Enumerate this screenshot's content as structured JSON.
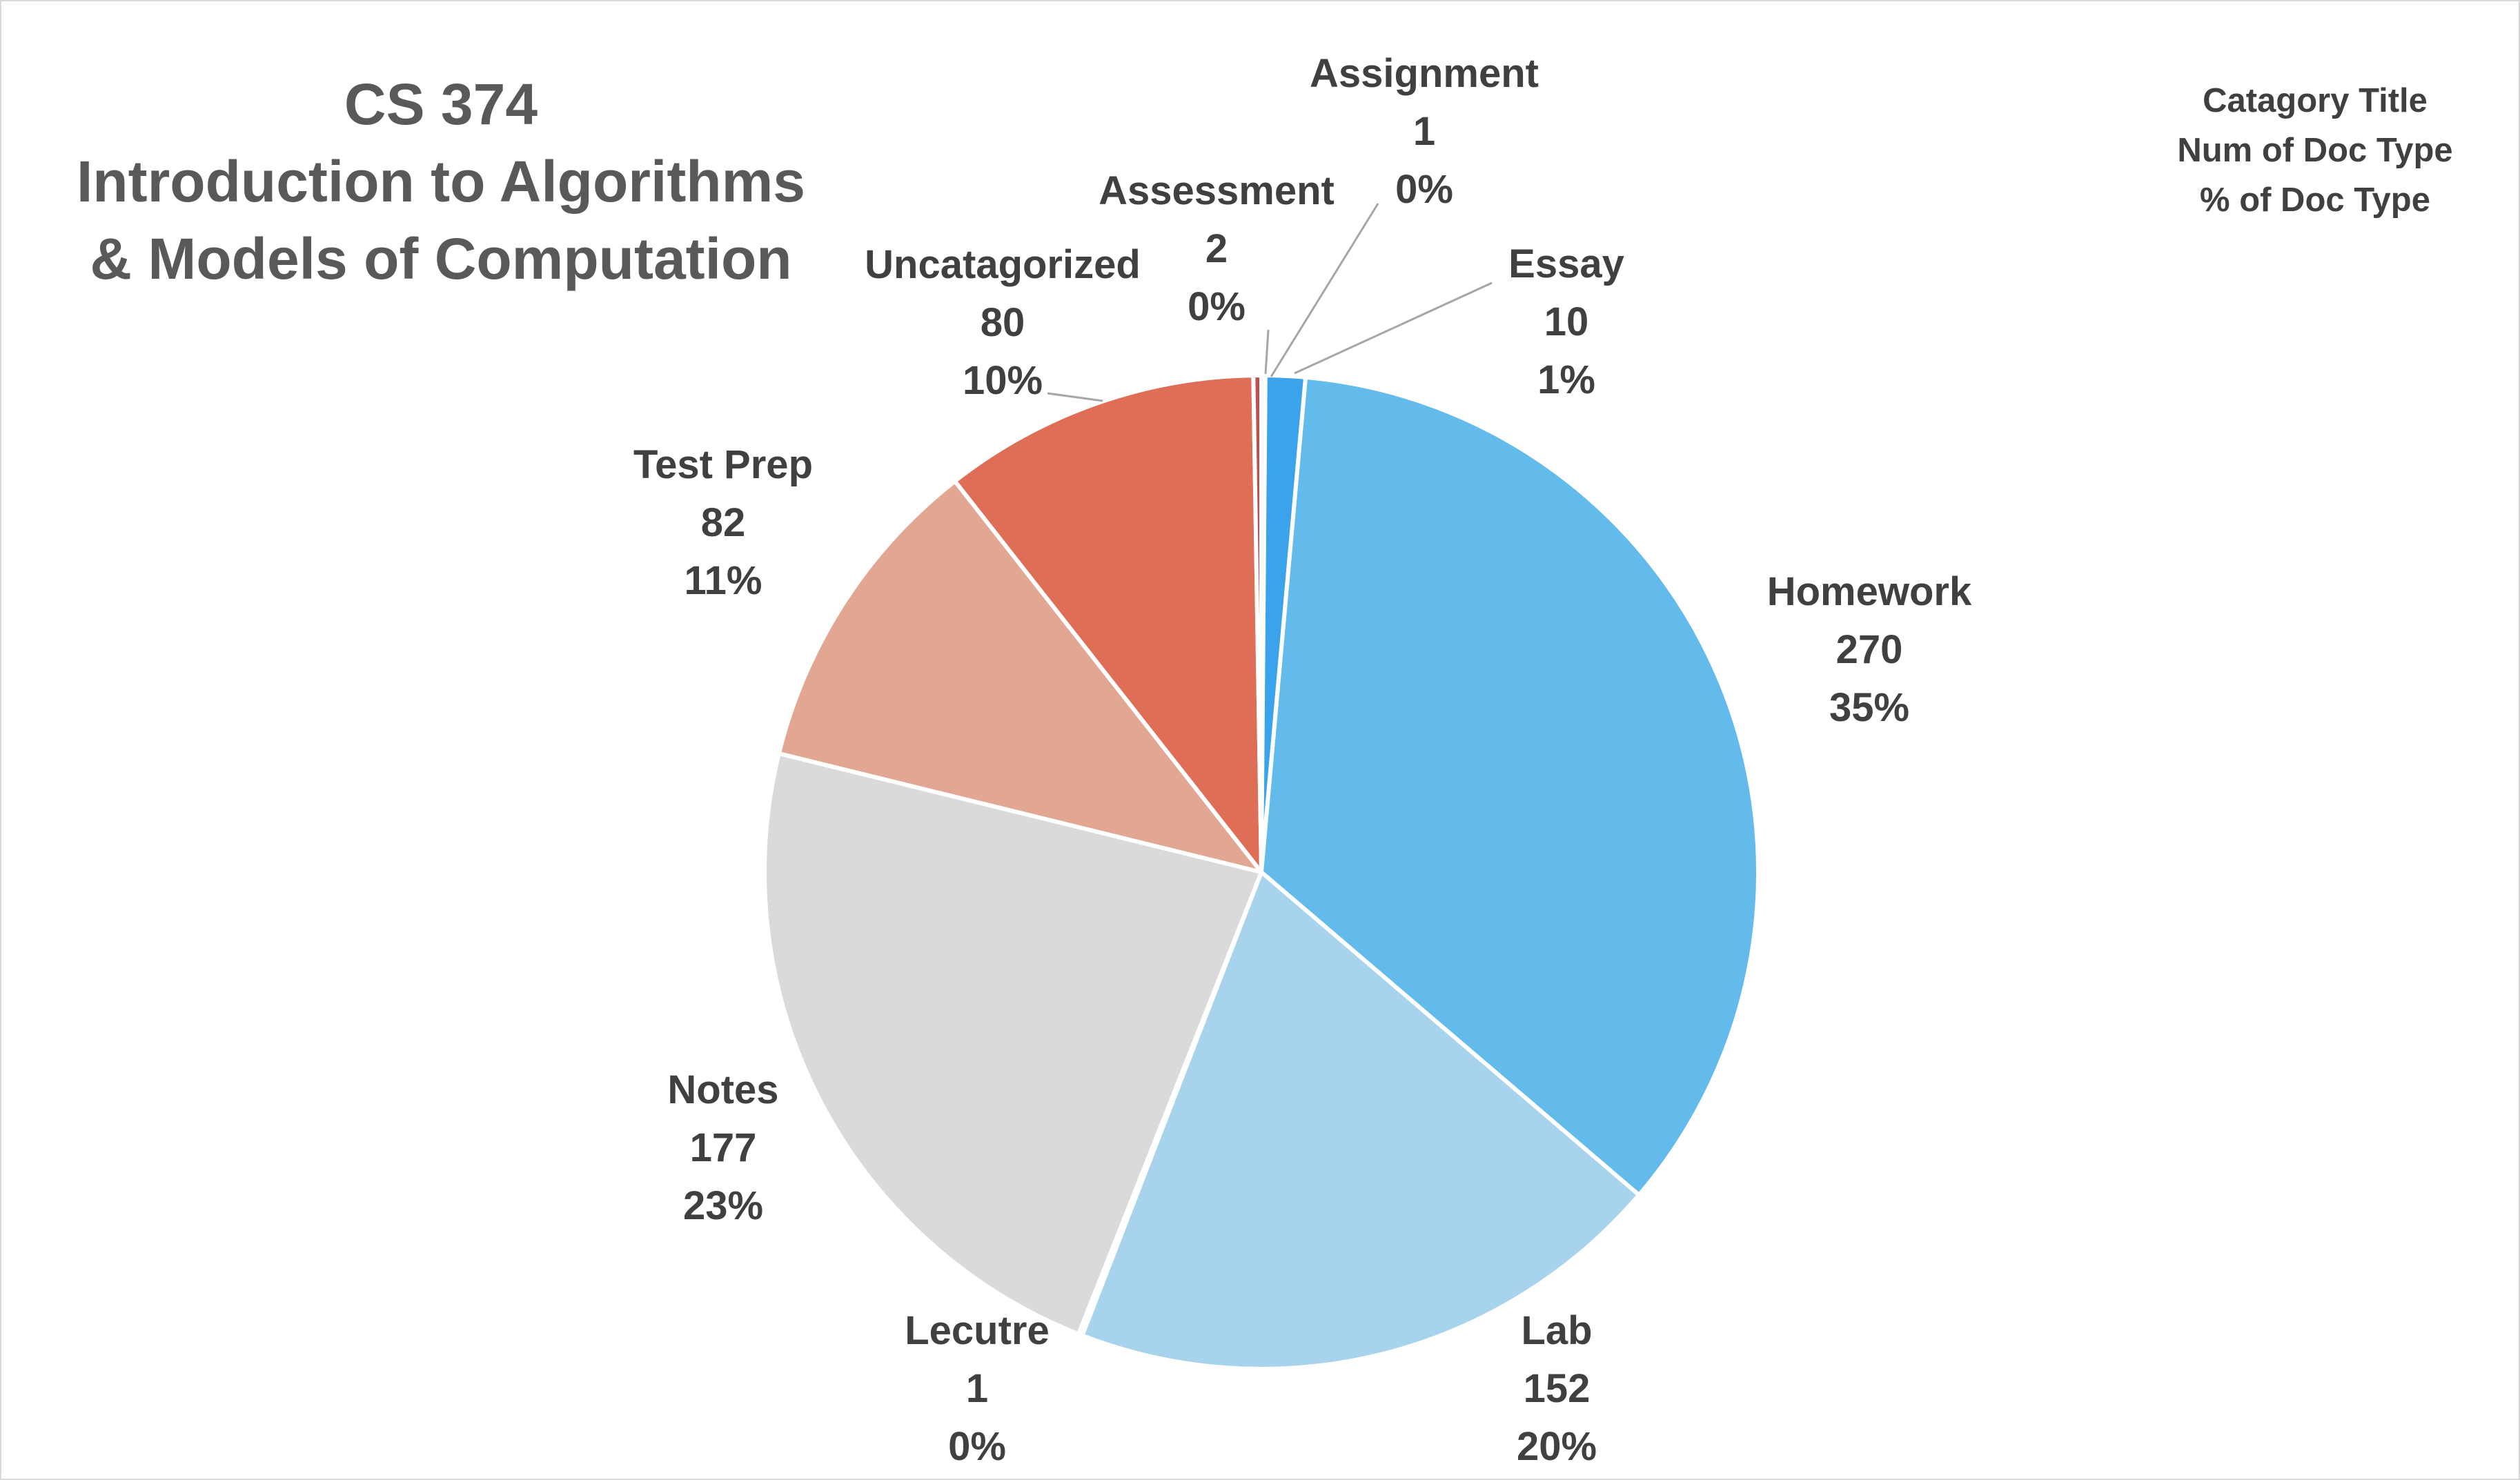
{
  "chart_data": {
    "type": "pie",
    "title": [
      "CS 374",
      "Introduction to Algorithms",
      "& Models of Computation"
    ],
    "legend_note": [
      "Catagory Title",
      "Num of Doc Type",
      "% of Doc Type"
    ],
    "start_angle_deg": 0,
    "direction": "clockwise",
    "slices": [
      {
        "label": "Assignment",
        "value": 1,
        "percent": "0%",
        "color": "#5b9bd5"
      },
      {
        "label": "Essay",
        "value": 10,
        "percent": "1%",
        "color": "#3aa3ec"
      },
      {
        "label": "Homework",
        "value": 270,
        "percent": "35%",
        "color": "#62bbeb"
      },
      {
        "label": "Lab",
        "value": 152,
        "percent": "20%",
        "color": "#a7d3ec"
      },
      {
        "label": "Lecutre",
        "value": 1,
        "percent": "0%",
        "color": "#bfbfbf"
      },
      {
        "label": "Notes",
        "value": 177,
        "percent": "23%",
        "color": "#dadada"
      },
      {
        "label": "Test Prep",
        "value": 82,
        "percent": "11%",
        "color": "#e2a793"
      },
      {
        "label": "Uncatagorized",
        "value": 80,
        "percent": "10%",
        "color": "#df6e57"
      },
      {
        "label": "Assessment",
        "value": 2,
        "percent": "0%",
        "color": "#c0504d"
      }
    ]
  }
}
